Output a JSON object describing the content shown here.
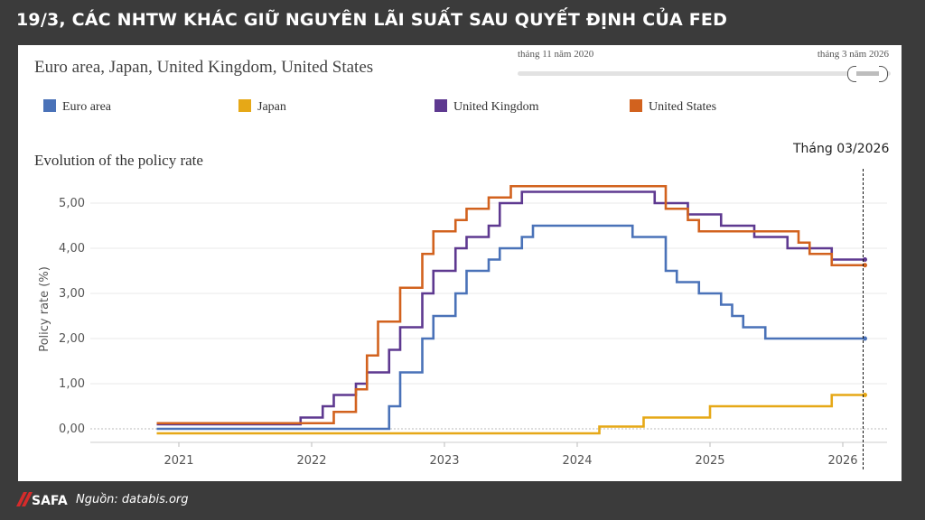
{
  "headline": "19/3, CÁC NHTW KHÁC GIỮ NGUYÊN LÃI SUẤT SAU QUYẾT ĐỊNH CỦA FED",
  "subtitle": "Euro area, Japan, United Kingdom, United States",
  "range_slider": {
    "start_label": "tháng 11 năm 2020",
    "end_label": "tháng 3 năm 2026"
  },
  "section_title": "Evolution of the policy rate",
  "marker_label": "Tháng 03/2026",
  "footer": {
    "logo_text": "SAFA",
    "source": "Nguồn: databis.org"
  },
  "colors": {
    "euro": "#4a72b8",
    "japan": "#e6a817",
    "uk": "#5e3990",
    "us": "#d2621e",
    "background": "#3b3b3b"
  },
  "chart_data": {
    "type": "line",
    "step": true,
    "ylabel": "Policy rate (%)",
    "xlabel": "",
    "y_ticks": [
      "0,00",
      "1,00",
      "2,00",
      "3,00",
      "4,00",
      "5,00"
    ],
    "ylim": [
      -0.3,
      5.6
    ],
    "x_ticks": [
      "2021",
      "2022",
      "2023",
      "2024",
      "2025",
      "2026"
    ],
    "xlim": [
      "2020-05",
      "2026-05"
    ],
    "marker_x": "2026-03",
    "grid": true,
    "legend_position": "top",
    "series": [
      {
        "name": "Euro area",
        "color": "#4a72b8",
        "points": [
          [
            "2020-11",
            0
          ],
          [
            "2022-07",
            0
          ],
          [
            "2022-08",
            0.5
          ],
          [
            "2022-09",
            1.25
          ],
          [
            "2022-11",
            2.0
          ],
          [
            "2022-12",
            2.5
          ],
          [
            "2023-02",
            3.0
          ],
          [
            "2023-03",
            3.5
          ],
          [
            "2023-05",
            3.75
          ],
          [
            "2023-06",
            4.0
          ],
          [
            "2023-08",
            4.25
          ],
          [
            "2023-09",
            4.5
          ],
          [
            "2024-06",
            4.25
          ],
          [
            "2024-09",
            3.5
          ],
          [
            "2024-10",
            3.25
          ],
          [
            "2024-12",
            3.0
          ],
          [
            "2025-02",
            2.75
          ],
          [
            "2025-03",
            2.5
          ],
          [
            "2025-04",
            2.25
          ],
          [
            "2025-06",
            2.0
          ],
          [
            "2026-03",
            2.0
          ]
        ]
      },
      {
        "name": "Japan",
        "color": "#e6a817",
        "points": [
          [
            "2020-11",
            -0.1
          ],
          [
            "2024-03",
            0.05
          ],
          [
            "2024-07",
            0.25
          ],
          [
            "2025-01",
            0.5
          ],
          [
            "2025-12",
            0.75
          ],
          [
            "2026-03",
            0.75
          ]
        ]
      },
      {
        "name": "United Kingdom",
        "color": "#5e3990",
        "points": [
          [
            "2020-11",
            0.1
          ],
          [
            "2021-12",
            0.25
          ],
          [
            "2022-02",
            0.5
          ],
          [
            "2022-03",
            0.75
          ],
          [
            "2022-05",
            1.0
          ],
          [
            "2022-06",
            1.25
          ],
          [
            "2022-08",
            1.75
          ],
          [
            "2022-09",
            2.25
          ],
          [
            "2022-11",
            3.0
          ],
          [
            "2022-12",
            3.5
          ],
          [
            "2023-02",
            4.0
          ],
          [
            "2023-03",
            4.25
          ],
          [
            "2023-05",
            4.5
          ],
          [
            "2023-06",
            5.0
          ],
          [
            "2023-08",
            5.25
          ],
          [
            "2024-08",
            5.0
          ],
          [
            "2024-11",
            4.75
          ],
          [
            "2025-02",
            4.5
          ],
          [
            "2025-05",
            4.25
          ],
          [
            "2025-08",
            4.0
          ],
          [
            "2025-12",
            3.75
          ],
          [
            "2026-03",
            3.75
          ]
        ]
      },
      {
        "name": "United States",
        "color": "#d2621e",
        "points": [
          [
            "2020-11",
            0.125
          ],
          [
            "2022-03",
            0.375
          ],
          [
            "2022-05",
            0.875
          ],
          [
            "2022-06",
            1.625
          ],
          [
            "2022-07",
            2.375
          ],
          [
            "2022-09",
            3.125
          ],
          [
            "2022-11",
            3.875
          ],
          [
            "2022-12",
            4.375
          ],
          [
            "2023-02",
            4.625
          ],
          [
            "2023-03",
            4.875
          ],
          [
            "2023-05",
            5.125
          ],
          [
            "2023-07",
            5.375
          ],
          [
            "2024-09",
            4.875
          ],
          [
            "2024-11",
            4.625
          ],
          [
            "2024-12",
            4.375
          ],
          [
            "2025-09",
            4.125
          ],
          [
            "2025-10",
            3.875
          ],
          [
            "2025-12",
            3.625
          ],
          [
            "2026-03",
            3.625
          ]
        ]
      }
    ]
  }
}
